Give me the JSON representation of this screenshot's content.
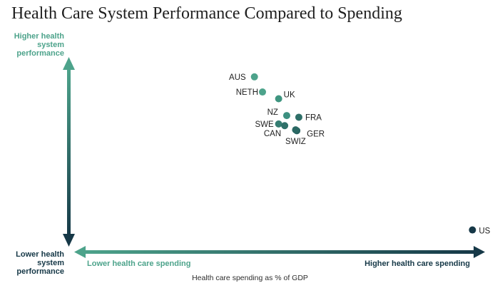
{
  "title": "Health Care System Performance Compared to Spending",
  "axes": {
    "y_top": [
      "Higher health",
      "system",
      "performance"
    ],
    "y_bottom": [
      "Lower health",
      "system",
      "performance"
    ],
    "x_left": "Lower health care spending",
    "x_right": "Higher health care spending",
    "x_title": "Health care spending as % of GDP"
  },
  "colors": {
    "high_end": "#4da38b",
    "low_end": "#163847",
    "text": "#1f1f1f"
  },
  "chart_data": {
    "type": "scatter",
    "title": "Health Care System Performance Compared to Spending",
    "xlabel": "Health care spending as % of GDP",
    "ylabel": "",
    "points": [
      {
        "label": "AUS",
        "x": 0.45,
        "y": 0.95,
        "color": "#4da38b"
      },
      {
        "label": "NETH",
        "x": 0.47,
        "y": 0.86,
        "color": "#4da38b"
      },
      {
        "label": "UK",
        "x": 0.51,
        "y": 0.82,
        "color": "#3f9580"
      },
      {
        "label": "NZ",
        "x": 0.53,
        "y": 0.72,
        "color": "#3c9080"
      },
      {
        "label": "FRA",
        "x": 0.56,
        "y": 0.71,
        "color": "#2e6f68"
      },
      {
        "label": "SWE",
        "x": 0.51,
        "y": 0.67,
        "color": "#357d72"
      },
      {
        "label": "CAN",
        "x": 0.525,
        "y": 0.66,
        "color": "#2f7069"
      },
      {
        "label": "GER",
        "x": 0.555,
        "y": 0.63,
        "color": "#27615f"
      },
      {
        "label": "SWIZ",
        "x": 0.552,
        "y": 0.635,
        "color": "#2a6863"
      },
      {
        "label": "US",
        "x": 0.99,
        "y": 0.04,
        "color": "#163847"
      }
    ],
    "xlim": [
      0,
      1
    ],
    "ylim": [
      0,
      1
    ],
    "grid": false,
    "legend": "none"
  }
}
